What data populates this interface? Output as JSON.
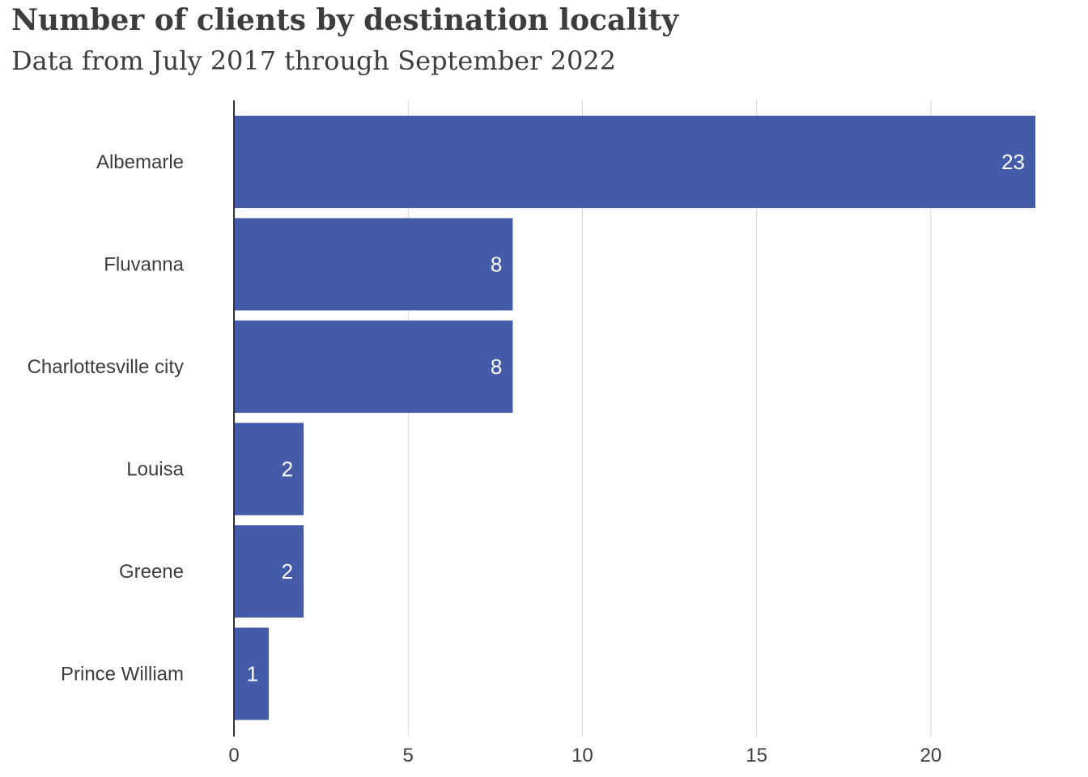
{
  "chart_data": {
    "type": "bar",
    "orientation": "horizontal",
    "title": "Number of clients by destination locality",
    "subtitle": "Data from July 2017 through September 2022",
    "categories": [
      "Albemarle",
      "Fluvanna",
      "Charlottesville city",
      "Louisa",
      "Greene",
      "Prince William"
    ],
    "values": [
      23,
      8,
      8,
      2,
      2,
      1
    ],
    "xlim": [
      0,
      23
    ],
    "xticks": [
      0,
      5,
      10,
      15,
      20
    ],
    "grid": true,
    "bar_color": "#445ca8",
    "grid_color": "#d4d4d4",
    "axis_color": "#333333"
  }
}
